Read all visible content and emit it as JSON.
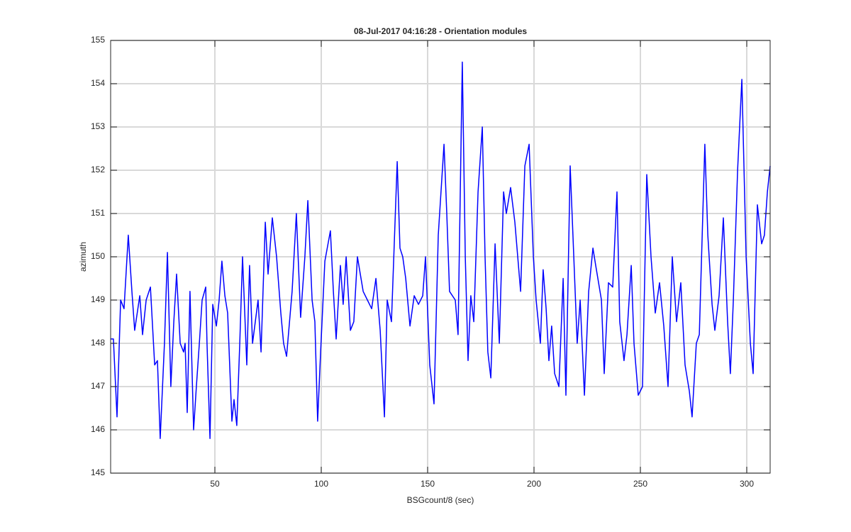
{
  "chart_data": {
    "type": "line",
    "title": "08-Jul-2017 04:16:28 - Orientation modules",
    "x_label": "BSGcount/8 (sec)",
    "y_label": "azimuth",
    "x": [
      1,
      2.3,
      4,
      5.7,
      7.3,
      9.3,
      11,
      12.3,
      14.7,
      16,
      17.7,
      19.7,
      21.7,
      23,
      24.3,
      26.3,
      27.7,
      29.3,
      30.7,
      32,
      33.7,
      35.3,
      36,
      37,
      38.3,
      40,
      41.3,
      42.7,
      44,
      45.7,
      46.3,
      47.7,
      49,
      50.7,
      52,
      53.3,
      54.7,
      56,
      58,
      59,
      60.3,
      61.7,
      63,
      65,
      66.3,
      67.7,
      69,
      70.3,
      71.7,
      73.7,
      75,
      77,
      79,
      81,
      82.3,
      83.7,
      86.3,
      88.3,
      90.3,
      92.3,
      93.7,
      95.7,
      97,
      98.3,
      99.7,
      101.7,
      104.3,
      105.7,
      107,
      109,
      110.3,
      111.7,
      113.7,
      115.3,
      117,
      119.7,
      121.7,
      123.7,
      125.7,
      127.7,
      129.7,
      131,
      133,
      135.7,
      137,
      138.3,
      139.7,
      141.7,
      143.7,
      145.7,
      147.7,
      149,
      151,
      153,
      155,
      157.7,
      159,
      160.3,
      163,
      164.3,
      166.3,
      167.7,
      169,
      170.3,
      171.7,
      173.7,
      175.7,
      177,
      178.3,
      179.7,
      181.7,
      183.7,
      185.7,
      187,
      189,
      191,
      193.7,
      195.7,
      197.7,
      199.7,
      201,
      203,
      204.3,
      205.7,
      207,
      208.3,
      209.7,
      211.7,
      213.7,
      215,
      217,
      218.3,
      220.3,
      221.7,
      223.7,
      225.7,
      227.7,
      229,
      231.7,
      233,
      235,
      237,
      239,
      240.3,
      242.3,
      243.7,
      245.7,
      247,
      249,
      251,
      253,
      255,
      257,
      259,
      261,
      263,
      265,
      267,
      269,
      271,
      273,
      274.3,
      276.3,
      277.7,
      280.3,
      281.7,
      283.7,
      285,
      287,
      289,
      291,
      292.3,
      293.7,
      295.7,
      297.7,
      299.7,
      301.7,
      303,
      305,
      307,
      308.3,
      309.7,
      311
    ],
    "series": [
      {
        "name": "azimuth",
        "color": "#0000ff",
        "values": [
          148.1,
          148.1,
          146.3,
          149,
          148.8,
          150.5,
          149.2,
          148.3,
          149.1,
          148.2,
          149,
          149.3,
          147.5,
          147.6,
          145.8,
          148,
          150.1,
          147,
          148.5,
          149.6,
          148,
          147.8,
          148,
          146.4,
          149.2,
          146,
          147,
          148,
          149,
          149.3,
          148,
          145.8,
          148.9,
          148.4,
          149,
          149.9,
          149.1,
          148.7,
          146.2,
          146.7,
          146.1,
          148,
          150,
          147.5,
          149.8,
          148,
          148.5,
          149,
          147.8,
          150.8,
          149.6,
          150.9,
          150,
          148.7,
          148,
          147.7,
          149.2,
          151,
          148.6,
          150,
          151.3,
          149,
          148.5,
          146.2,
          147.8,
          149.9,
          150.6,
          149.2,
          148.1,
          149.8,
          148.9,
          150,
          148.3,
          148.5,
          150,
          149.2,
          149,
          148.8,
          149.5,
          148.3,
          146.3,
          149,
          148.5,
          152.2,
          150.2,
          150,
          149.5,
          148.4,
          149.1,
          148.9,
          149.1,
          150,
          147.5,
          146.6,
          150.5,
          152.6,
          151,
          149.2,
          149,
          148.2,
          154.5,
          150,
          147.6,
          149.1,
          148.5,
          151.5,
          153,
          150,
          147.8,
          147.2,
          150.3,
          148,
          151.5,
          151,
          151.6,
          150.8,
          149.2,
          152.1,
          152.6,
          150,
          149,
          148,
          149.7,
          148.8,
          147.6,
          148.4,
          147.3,
          147,
          149.5,
          146.8,
          152.1,
          150.5,
          148,
          149,
          146.8,
          149.2,
          150.2,
          149.8,
          149,
          147.3,
          149.4,
          149.3,
          151.5,
          148.5,
          147.6,
          148.2,
          149.8,
          148,
          146.8,
          147,
          151.9,
          150,
          148.7,
          149.4,
          148.4,
          147,
          150,
          148.5,
          149.4,
          147.5,
          146.9,
          146.3,
          148,
          148.2,
          152.6,
          150.5,
          148.9,
          148.3,
          149.1,
          150.9,
          148.5,
          147.3,
          149,
          152,
          154.1,
          150,
          148,
          147.3,
          151.2,
          150.3,
          150.5,
          151.5,
          152.1
        ]
      }
    ],
    "xlim": [
      1,
      311
    ],
    "xticks": [
      50,
      100,
      150,
      200,
      250,
      300
    ],
    "ylim": [
      145,
      155
    ],
    "yticks": [
      145,
      146,
      147,
      148,
      149,
      150,
      151,
      152,
      153,
      154,
      155
    ],
    "grid": true
  }
}
